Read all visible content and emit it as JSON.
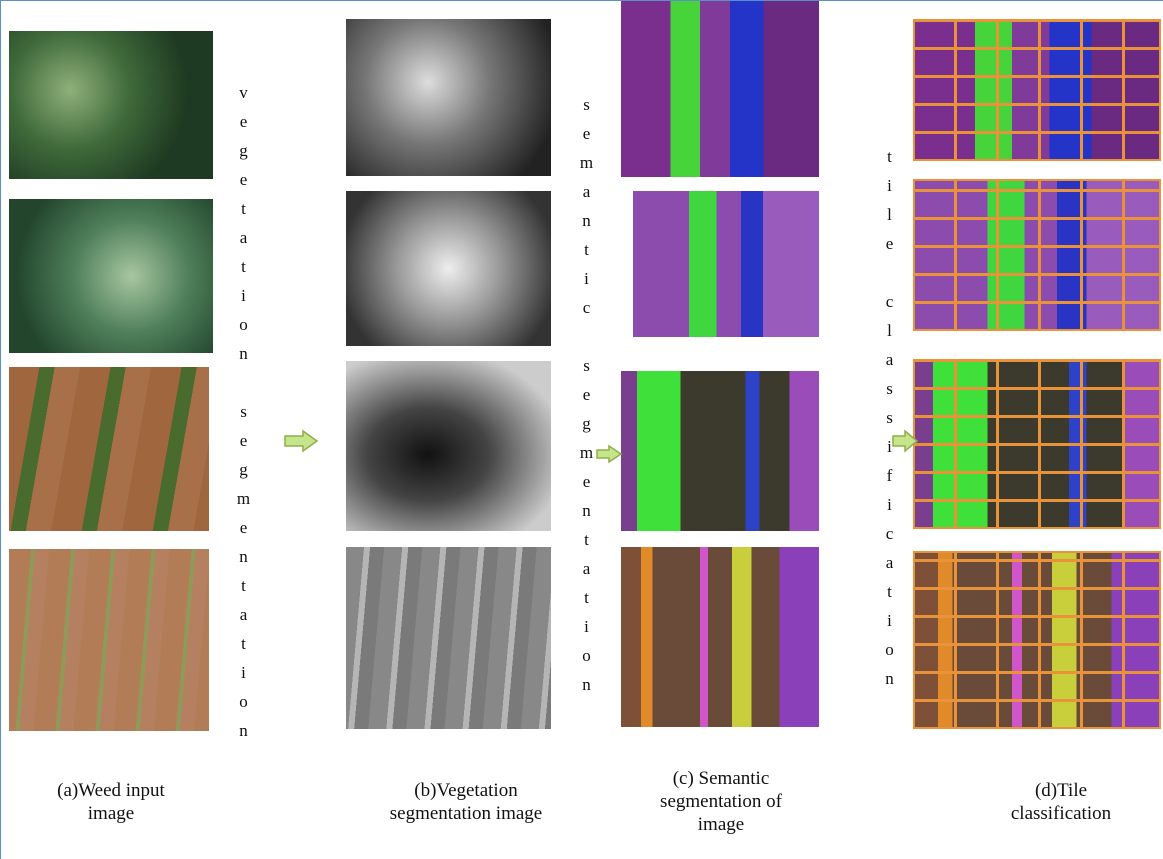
{
  "figure": {
    "step_labels": [
      "vegetation segmentation",
      "semantic segmentation",
      "tile classification"
    ],
    "captions": [
      {
        "lines": [
          "(a)Weed input",
          "image"
        ]
      },
      {
        "lines": [
          "(b)Vegetation",
          "segmentation image"
        ]
      },
      {
        "lines": [
          "(c) Semantic",
          "segmentation of",
          "image"
        ]
      },
      {
        "lines": [
          "(d)Tile",
          "classification"
        ]
      }
    ]
  }
}
